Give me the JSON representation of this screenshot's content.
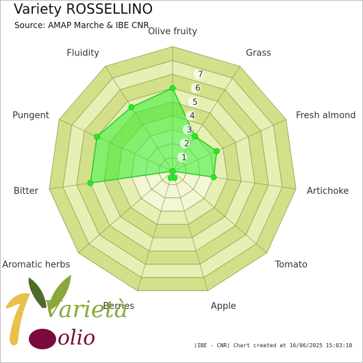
{
  "title": "Variety ROSSELLINO",
  "subtitle": "Source: AMAP Marche & IBE CNR",
  "credit": "(IBE - CNR) Chart created at 16/06/2025 15:03:10",
  "logo": {
    "word1": "Varietà",
    "word2": "olio"
  },
  "colors": {
    "band_dark": "#d2e08a",
    "band_light": "#e6efb4",
    "inner_pale": "#f3f7d6",
    "grid_line": "#8e9a4e",
    "series_fill": "#33ee33",
    "series_stroke": "#22cc22",
    "point": "#22ee22"
  },
  "chart_data": {
    "type": "radar",
    "axes": [
      "Olive fruity",
      "Grass",
      "Fresh almond",
      "Artichoke",
      "Tomato",
      "Apple",
      "Berries",
      "Aromatic herbs",
      "Bitter",
      "Pungent",
      "Fluidity"
    ],
    "ticks": [
      1,
      2,
      3,
      4,
      5,
      6,
      7
    ],
    "range": [
      0,
      9
    ],
    "series": [
      {
        "values": [
          6.0,
          3.0,
          3.5,
          3.0,
          0.0,
          0.5,
          0.5,
          0.0,
          6.0,
          6.0,
          5.5
        ]
      }
    ],
    "grid": true
  }
}
